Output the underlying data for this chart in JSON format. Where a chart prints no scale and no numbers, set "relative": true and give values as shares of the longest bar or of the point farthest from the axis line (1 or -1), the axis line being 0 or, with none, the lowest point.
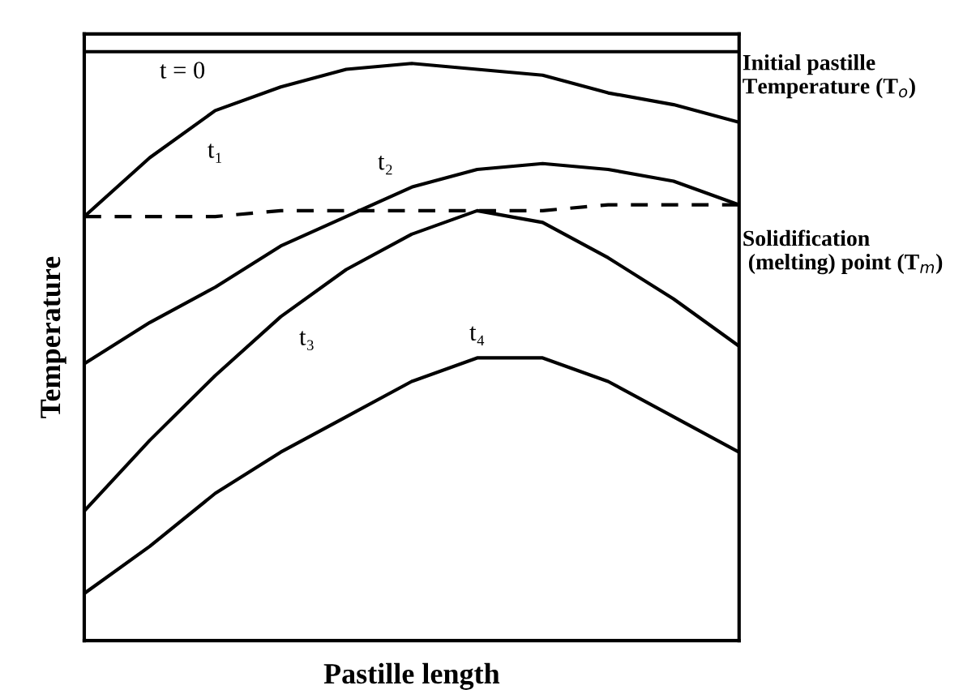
{
  "chart_data": {
    "type": "line",
    "relative": true,
    "xlabel": "Pastille length",
    "ylabel": "Temperature",
    "legend": false,
    "marker": "none",
    "categories": [
      null,
      null,
      null,
      null,
      null,
      null,
      null,
      null,
      null,
      null,
      null
    ],
    "series": [
      {
        "name": "t = 0",
        "color": "#000000",
        "values": [
          1,
          1,
          1,
          1,
          1,
          1,
          1,
          1,
          1,
          1,
          1
        ]
      },
      {
        "name": "t₁",
        "color": "#000000",
        "values": [
          0.72,
          0.82,
          0.9,
          0.94,
          0.97,
          0.98,
          0.97,
          0.96,
          0.93,
          0.91,
          0.88
        ]
      },
      {
        "name": "t₂",
        "color": "#000000",
        "values": [
          0.47,
          0.54,
          0.6,
          0.67,
          0.72,
          0.77,
          0.8,
          0.81,
          0.8,
          0.78,
          0.74
        ]
      },
      {
        "color": "#000000",
        "line_style": "dashed",
        "values": [
          0.72,
          0.72,
          0.72,
          0.73,
          0.73,
          0.73,
          0.73,
          0.73,
          0.74,
          0.74,
          0.74
        ]
      },
      {
        "name": "t₃",
        "color": "#000000",
        "values": [
          0.22,
          0.34,
          0.45,
          0.55,
          0.63,
          0.69,
          0.73,
          0.71,
          0.65,
          0.58,
          0.5
        ]
      },
      {
        "name": "t₄",
        "color": "#000000",
        "values": [
          0.08,
          0.16,
          0.25,
          0.32,
          0.38,
          0.44,
          0.48,
          0.48,
          0.44,
          0.38,
          0.32
        ]
      }
    ],
    "annotations": [
      "Initial pastille\nTemperature (T$_{o}$)",
      "Solidification\n (melting) point (T$_{m}$)"
    ]
  }
}
